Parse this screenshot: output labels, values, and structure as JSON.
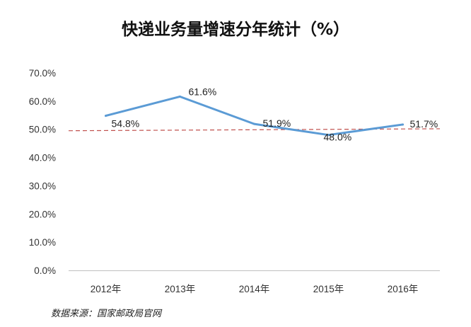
{
  "chart_data": {
    "type": "line",
    "title": "快递业务量增速分年统计（%）",
    "xlabel": "",
    "ylabel": "",
    "categories": [
      "2012年",
      "2013年",
      "2014年",
      "2015年",
      "2016年"
    ],
    "series": [
      {
        "values": [
          54.8,
          61.6,
          51.9,
          48.0,
          51.7
        ],
        "color": "#5b9bd5"
      }
    ],
    "data_labels": [
      "54.8%",
      "61.6%",
      "51.9%",
      "48.0%",
      "51.7%"
    ],
    "trendline": {
      "values": [
        49.5,
        50.2
      ],
      "color": "#c0504d",
      "style": "dashed"
    },
    "ylim": [
      0,
      70
    ],
    "yticks": [
      0,
      10,
      20,
      30,
      40,
      50,
      60,
      70
    ],
    "ytick_labels": [
      "0.0%",
      "10.0%",
      "20.0%",
      "30.0%",
      "40.0%",
      "50.0%",
      "60.0%",
      "70.0%"
    ],
    "grid": false,
    "legend": "none"
  },
  "source": "数据来源：国家邮政局官网"
}
